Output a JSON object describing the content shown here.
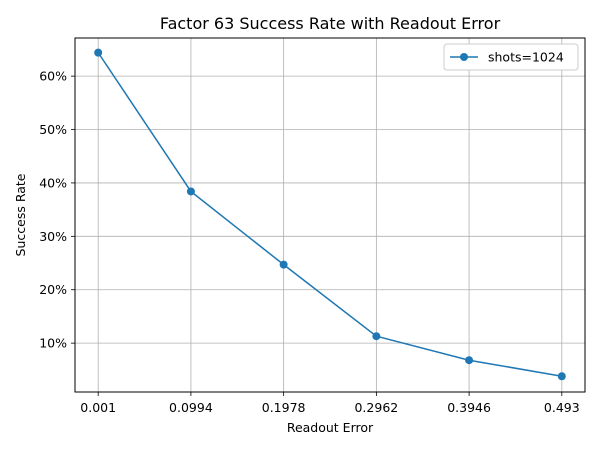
{
  "chart_data": {
    "type": "line",
    "title": "Factor 63 Success Rate with Readout Error",
    "xlabel": "Readout Error",
    "ylabel": "Success Rate",
    "x_ticks": [
      "0.001",
      "0.0994",
      "0.1978",
      "0.2962",
      "0.3946",
      "0.493"
    ],
    "y_ticks": [
      "10%",
      "20%",
      "30%",
      "40%",
      "50%",
      "60%"
    ],
    "y_tick_values": [
      0.1,
      0.2,
      0.3,
      0.4,
      0.5,
      0.6
    ],
    "xlim": [
      -0.0236,
      0.5176
    ],
    "ylim": [
      0.0085,
      0.6714
    ],
    "grid": true,
    "legend_position": "top-right",
    "color": "#1f77b4",
    "series": [
      {
        "name": "shots=1024",
        "x": [
          0.001,
          0.0994,
          0.1978,
          0.2962,
          0.3946,
          0.493
        ],
        "y": [
          0.644,
          0.384,
          0.247,
          0.113,
          0.068,
          0.038
        ]
      }
    ]
  }
}
